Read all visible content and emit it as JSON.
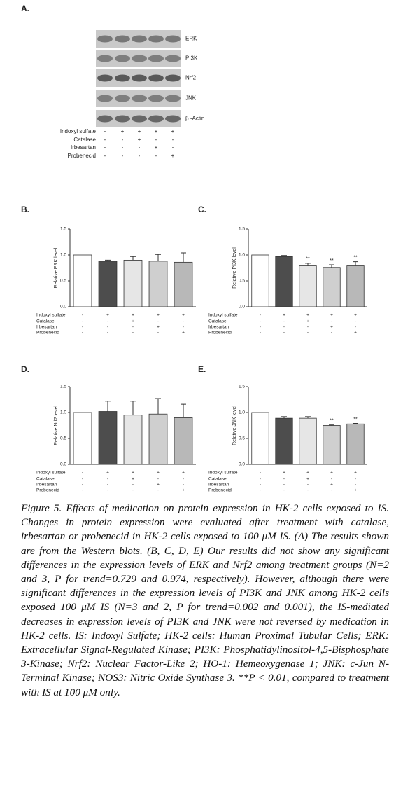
{
  "blot": {
    "label": "A.",
    "bands": [
      "ERK",
      "PI3K",
      "Nrf2",
      "JNK",
      "β -Actin"
    ],
    "treatments": [
      {
        "name": "Indoxyl sulfate",
        "signs": [
          "-",
          "+",
          "+",
          "+",
          "+"
        ]
      },
      {
        "name": "Catalase",
        "signs": [
          "-",
          "-",
          "+",
          "-",
          "-"
        ]
      },
      {
        "name": "Irbesartan",
        "signs": [
          "-",
          "-",
          "-",
          "+",
          "-"
        ]
      },
      {
        "name": "Probenecid",
        "signs": [
          "-",
          "-",
          "-",
          "-",
          "+"
        ]
      }
    ]
  },
  "chart_data": [
    {
      "type": "bar",
      "panel_label": "B.",
      "ylabel": "Relative ERK level",
      "values": [
        1.0,
        0.88,
        0.9,
        0.88,
        0.86
      ],
      "errors": [
        null,
        0.02,
        0.07,
        0.13,
        0.18
      ],
      "significance": [
        null,
        null,
        null,
        null,
        null
      ],
      "colors": [
        "#ffffff",
        "#4d4d4d",
        "#e6e6e6",
        "#cfcfcf",
        "#b8b8b8"
      ],
      "ylim": [
        0,
        1.5
      ],
      "yticks": [
        {
          "value": 0,
          "label": "0.0"
        },
        {
          "value": 0.5,
          "label": "0.5"
        },
        {
          "value": 1,
          "label": "1.0"
        },
        {
          "value": 1.5,
          "label": "1.5"
        }
      ],
      "treatments": [
        {
          "name": "Indoxyl sulfate",
          "signs": [
            "-",
            "+",
            "+",
            "+",
            "+"
          ]
        },
        {
          "name": "Catalase",
          "signs": [
            "-",
            "-",
            "+",
            "-",
            "-"
          ]
        },
        {
          "name": "Irbesartan",
          "signs": [
            "-",
            "-",
            "-",
            "+",
            "-"
          ]
        },
        {
          "name": "Probenecid",
          "signs": [
            "-",
            "-",
            "-",
            "-",
            "+"
          ]
        }
      ]
    },
    {
      "type": "bar",
      "panel_label": "C.",
      "ylabel": "Relative PI3K level",
      "values": [
        1.0,
        0.97,
        0.79,
        0.76,
        0.79
      ],
      "errors": [
        null,
        0.02,
        0.05,
        0.05,
        0.08
      ],
      "significance": [
        null,
        null,
        "**",
        "**",
        "**"
      ],
      "colors": [
        "#ffffff",
        "#4d4d4d",
        "#e6e6e6",
        "#cfcfcf",
        "#b8b8b8"
      ],
      "ylim": [
        0,
        1.5
      ],
      "yticks": [
        {
          "value": 0,
          "label": "0.0"
        },
        {
          "value": 0.5,
          "label": "0.5"
        },
        {
          "value": 1,
          "label": "1.0"
        },
        {
          "value": 1.5,
          "label": "1.5"
        }
      ],
      "treatments": [
        {
          "name": "Indoxyl sulfate",
          "signs": [
            "-",
            "+",
            "+",
            "+",
            "+"
          ]
        },
        {
          "name": "Catalase",
          "signs": [
            "-",
            "-",
            "+",
            "-",
            "-"
          ]
        },
        {
          "name": "Irbesartan",
          "signs": [
            "-",
            "-",
            "-",
            "+",
            "-"
          ]
        },
        {
          "name": "Probenecid",
          "signs": [
            "-",
            "-",
            "-",
            "-",
            "+"
          ]
        }
      ]
    },
    {
      "type": "bar",
      "panel_label": "D.",
      "ylabel": "Relative Nrf2 level",
      "values": [
        1.0,
        1.02,
        0.95,
        0.97,
        0.9
      ],
      "errors": [
        null,
        0.2,
        0.27,
        0.3,
        0.26
      ],
      "significance": [
        null,
        null,
        null,
        null,
        null
      ],
      "colors": [
        "#ffffff",
        "#4d4d4d",
        "#e6e6e6",
        "#cfcfcf",
        "#b8b8b8"
      ],
      "ylim": [
        0,
        1.5
      ],
      "yticks": [
        {
          "value": 0,
          "label": "0.0"
        },
        {
          "value": 0.5,
          "label": "0.5"
        },
        {
          "value": 1,
          "label": "1.0"
        },
        {
          "value": 1.5,
          "label": "1.5"
        }
      ],
      "treatments": [
        {
          "name": "Indoxyl sulfate",
          "signs": [
            "-",
            "+",
            "+",
            "+",
            "+"
          ]
        },
        {
          "name": "Catalase",
          "signs": [
            "-",
            "-",
            "+",
            "-",
            "-"
          ]
        },
        {
          "name": "Irbesartan",
          "signs": [
            "-",
            "-",
            "-",
            "+",
            "-"
          ]
        },
        {
          "name": "Probenecid",
          "signs": [
            "-",
            "-",
            "-",
            "-",
            "+"
          ]
        }
      ]
    },
    {
      "type": "bar",
      "panel_label": "E.",
      "ylabel": "Relative JNK level",
      "values": [
        1.0,
        0.89,
        0.89,
        0.75,
        0.78
      ],
      "errors": [
        null,
        0.03,
        0.03,
        0.01,
        0.01
      ],
      "significance": [
        null,
        null,
        null,
        "**",
        "**"
      ],
      "colors": [
        "#ffffff",
        "#4d4d4d",
        "#e6e6e6",
        "#cfcfcf",
        "#b8b8b8"
      ],
      "ylim": [
        0,
        1.5
      ],
      "yticks": [
        {
          "value": 0,
          "label": "0.0"
        },
        {
          "value": 0.5,
          "label": "0.5"
        },
        {
          "value": 1,
          "label": "1.0"
        },
        {
          "value": 1.5,
          "label": "1.5"
        }
      ],
      "treatments": [
        {
          "name": "Indoxyl sulfate",
          "signs": [
            "-",
            "+",
            "+",
            "+",
            "+"
          ]
        },
        {
          "name": "Catalase",
          "signs": [
            "-",
            "-",
            "+",
            "-",
            "-"
          ]
        },
        {
          "name": "Irbesartan",
          "signs": [
            "-",
            "-",
            "-",
            "+",
            "-"
          ]
        },
        {
          "name": "Probenecid",
          "signs": [
            "-",
            "-",
            "-",
            "-",
            "+"
          ]
        }
      ]
    }
  ],
  "caption": "Figure 5. Effects of medication on protein expression in HK-2 cells exposed to IS. Changes in protein expression were evaluated after treatment with catalase, irbesartan or probenecid in HK-2 cells exposed to 100 μM IS. (A) The results shown are from the Western blots. (B, C, D, E) Our results did not show any significant differences in the expression levels of ERK and Nrf2 among treatment groups (N=2 and 3, P for trend=0.729 and 0.974, respectively). However, although there were significant differences in the expression levels of PI3K and JNK among HK-2 cells exposed 100 μM IS (N=3 and 2, P for trend=0.002 and 0.001), the IS-mediated decreases in expression levels of PI3K and JNK were not reversed by medication in HK-2 cells. IS: Indoxyl Sulfate; HK-2 cells: Human Proximal Tubular Cells; ERK: Extracellular Signal-Regulated Kinase; PI3K: Phosphatidylinositol-4,5-Bisphosphate 3-Kinase; Nrf2: Nuclear Factor-Like 2; HO-1: Hemeoxygenase 1; JNK: c-Jun N-Terminal Kinase; NOS3: Nitric Oxide Synthase 3. **P < 0.01, compared to treatment with IS at 100 μM only."
}
